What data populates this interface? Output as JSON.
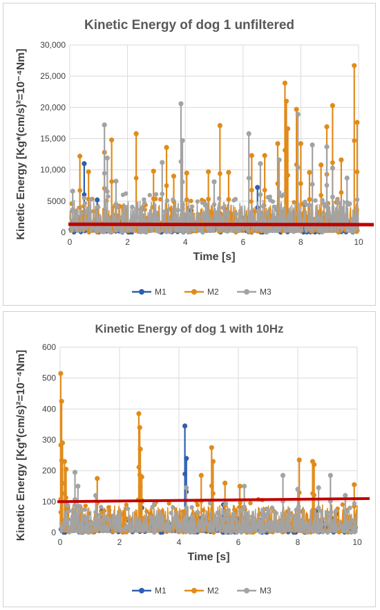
{
  "colors": {
    "M1": "#2e5fb0",
    "M2": "#e18b1a",
    "M3": "#a3a3a3",
    "threshold": "#c00000"
  },
  "chart_data": [
    {
      "type": "line",
      "title": "Kinetic Energy of  dog 1 unfiltered",
      "xlabel": "Time [s]",
      "ylabel": "Kinetic Energy [Kg*(cm/s)²=10⁻⁴Nm]",
      "xlim": [
        0,
        10
      ],
      "ylim": [
        0,
        30000
      ],
      "x_ticks": [
        "0",
        "2",
        "4",
        "6",
        "8",
        "10"
      ],
      "y_ticks": [
        "0",
        "5000",
        "10,000",
        "15,000",
        "20,000",
        "25,000",
        "30,000"
      ],
      "grid": true,
      "legend": "bottom-center",
      "threshold": 1300,
      "series": [
        {
          "name": "M1",
          "color_key": "M1",
          "peaks": [
            [
              0.5,
              11000
            ],
            [
              0.95,
              5200
            ],
            [
              4.2,
              3500
            ],
            [
              6.5,
              7200
            ],
            [
              8.1,
              4500
            ]
          ]
        },
        {
          "name": "M2",
          "color_key": "M2",
          "peaks": [
            [
              0.35,
              12200
            ],
            [
              0.65,
              9700
            ],
            [
              1.2,
              12800
            ],
            [
              1.45,
              14800
            ],
            [
              2.3,
              15800
            ],
            [
              2.9,
              9800
            ],
            [
              3.35,
              13600
            ],
            [
              3.6,
              9000
            ],
            [
              4.05,
              9500
            ],
            [
              4.8,
              9700
            ],
            [
              5.2,
              17100
            ],
            [
              5.5,
              9600
            ],
            [
              6.3,
              12300
            ],
            [
              6.75,
              12300
            ],
            [
              7.2,
              14200
            ],
            [
              7.45,
              23900
            ],
            [
              7.5,
              21000
            ],
            [
              7.55,
              16600
            ],
            [
              7.85,
              19700
            ],
            [
              8.0,
              14200
            ],
            [
              8.3,
              9600
            ],
            [
              8.7,
              10800
            ],
            [
              8.9,
              16900
            ],
            [
              9.1,
              20300
            ],
            [
              9.4,
              11600
            ],
            [
              9.85,
              26700
            ],
            [
              9.95,
              17600
            ]
          ]
        },
        {
          "name": "M3",
          "color_key": "M3",
          "peaks": [
            [
              0.1,
              6600
            ],
            [
              1.2,
              17200
            ],
            [
              1.3,
              11900
            ],
            [
              1.6,
              8200
            ],
            [
              3.2,
              11200
            ],
            [
              3.85,
              20600
            ],
            [
              3.9,
              14700
            ],
            [
              5.0,
              8100
            ],
            [
              6.2,
              15800
            ],
            [
              6.6,
              11000
            ],
            [
              7.25,
              11600
            ],
            [
              7.9,
              18900
            ],
            [
              8.4,
              14000
            ],
            [
              8.9,
              13700
            ],
            [
              9.1,
              10300
            ],
            [
              9.6,
              8700
            ]
          ]
        }
      ]
    },
    {
      "type": "line",
      "title": "Kinetic Energy of dog 1 with 10Hz",
      "xlabel": "Time [s]",
      "ylabel": "Kinetic Energy [Kg*(cm/s)²=10⁻⁴Nm]",
      "xlim": [
        0,
        10
      ],
      "ylim": [
        0,
        600
      ],
      "x_ticks": [
        "0",
        "2",
        "4",
        "6",
        "8",
        "10"
      ],
      "y_ticks": [
        "0",
        "100",
        "200",
        "300",
        "400",
        "500",
        "600"
      ],
      "grid": true,
      "legend": "bottom-center",
      "threshold_line": [
        [
          0,
          100
        ],
        [
          10,
          110
        ]
      ],
      "series": [
        {
          "name": "M1",
          "color_key": "M1",
          "peaks": [
            [
              0.25,
              80
            ],
            [
              1.4,
              70
            ],
            [
              2.75,
              80
            ],
            [
              4.2,
              345
            ],
            [
              4.25,
              240
            ],
            [
              5.5,
              90
            ],
            [
              8.6,
              70
            ],
            [
              9.3,
              60
            ]
          ]
        },
        {
          "name": "M2",
          "color_key": "M2",
          "peaks": [
            [
              0.02,
              515
            ],
            [
              0.05,
              425
            ],
            [
              0.08,
              290
            ],
            [
              0.15,
              230
            ],
            [
              0.2,
              205
            ],
            [
              1.25,
              175
            ],
            [
              2.65,
              385
            ],
            [
              2.68,
              340
            ],
            [
              2.7,
              270
            ],
            [
              2.75,
              180
            ],
            [
              4.75,
              185
            ],
            [
              5.1,
              275
            ],
            [
              5.15,
              230
            ],
            [
              5.55,
              160
            ],
            [
              6.05,
              150
            ],
            [
              8.05,
              235
            ],
            [
              8.5,
              230
            ],
            [
              8.55,
              220
            ],
            [
              9.9,
              155
            ]
          ]
        },
        {
          "name": "M3",
          "color_key": "M3",
          "peaks": [
            [
              0.5,
              195
            ],
            [
              0.6,
              150
            ],
            [
              1.2,
              120
            ],
            [
              4.25,
              145
            ],
            [
              6.2,
              150
            ],
            [
              7.5,
              185
            ],
            [
              8.0,
              140
            ],
            [
              8.7,
              145
            ],
            [
              9.1,
              185
            ],
            [
              9.6,
              120
            ]
          ]
        }
      ]
    }
  ]
}
